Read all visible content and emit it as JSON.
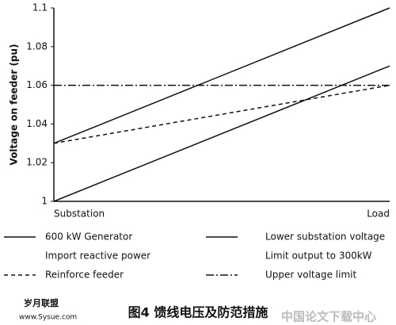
{
  "chart_data": {
    "type": "line",
    "ylabel": "Voltage on feeder (pu)",
    "categories": [
      "Substation",
      "Load"
    ],
    "ylim": [
      1,
      1.1
    ],
    "yticks": [
      1,
      1.02,
      1.04,
      1.06,
      1.08,
      1.1
    ],
    "series": [
      {
        "color": "#111111",
        "style": "solid",
        "values": [
          1.03,
          1.1
        ]
      },
      {
        "color": "#111111",
        "style": "solid",
        "values": [
          1,
          1.07
        ]
      },
      {
        "color": "#111111",
        "style": "dashed",
        "values": [
          1.03,
          1.06
        ]
      },
      {
        "color": "#111111",
        "style": "dashdot",
        "values": [
          1.06,
          1.06
        ]
      }
    ],
    "legend": [
      {
        "label": "600 kW Generator",
        "style": "solid"
      },
      {
        "label": "Import reactive power"
      },
      {
        "label": "Reinforce feeder",
        "style": "dashed"
      },
      {
        "label": "Lower substation voltage",
        "style": "solid"
      },
      {
        "label": "Limit output to 300kW"
      },
      {
        "label": "Upper voltage limit",
        "style": "dashdot"
      }
    ]
  },
  "caption": "图4  馈线电压及防范措施",
  "watermarks": [
    "岁月联盟",
    "www.Sysue.com",
    "中国论文下载中心"
  ]
}
